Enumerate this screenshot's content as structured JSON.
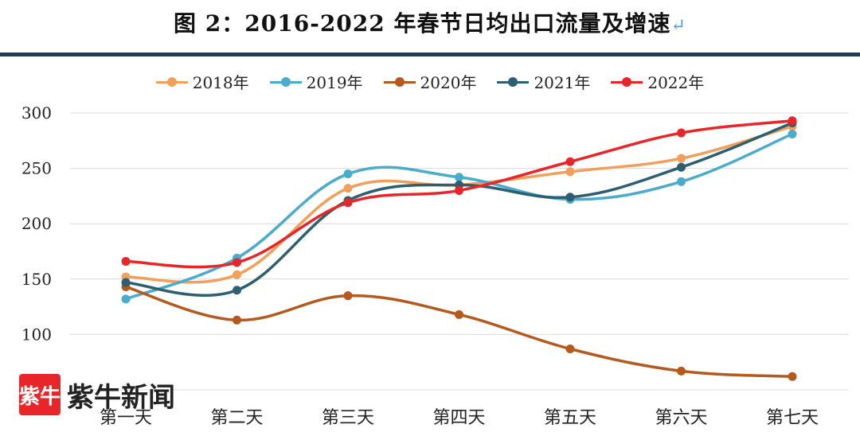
{
  "title": "图 2：2016-2022 年春节日均出口流量及增速",
  "title_mark": "↵",
  "watermark": {
    "logo_text": "紫牛",
    "text": "紫牛新闻"
  },
  "chart_data": {
    "type": "line",
    "title": "图 2：2016-2022 年春节日均出口流量及增速",
    "xlabel": "",
    "ylabel": "",
    "categories": [
      "第一天",
      "第二天",
      "第三天",
      "第四天",
      "第五天",
      "第六天",
      "第七天"
    ],
    "ylim": [
      50,
      300
    ],
    "yticks": [
      100,
      150,
      200,
      250,
      300
    ],
    "grid": true,
    "legend_position": "top-center",
    "series": [
      {
        "name": "2018年",
        "color": "#f0a05a",
        "values": [
          152,
          154,
          232,
          235,
          247,
          259,
          288
        ]
      },
      {
        "name": "2019年",
        "color": "#4aaccc",
        "values": [
          132,
          169,
          245,
          242,
          222,
          238,
          281
        ]
      },
      {
        "name": "2020年",
        "color": "#b45a1e",
        "values": [
          143,
          113,
          135,
          118,
          87,
          67,
          62
        ]
      },
      {
        "name": "2021年",
        "color": "#2e5f70",
        "values": [
          147,
          140,
          221,
          235,
          224,
          251,
          291
        ]
      },
      {
        "name": "2022年",
        "color": "#e8262a",
        "values": [
          166,
          165,
          219,
          230,
          256,
          282,
          293
        ]
      }
    ]
  }
}
